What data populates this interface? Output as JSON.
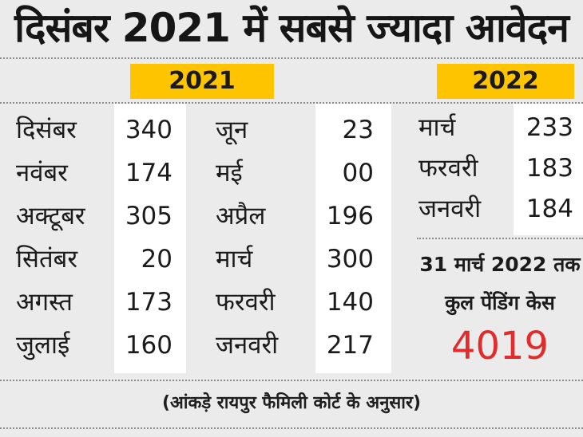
{
  "title": "दिसंबर 2021 में सबसे ज्यादा आवेदन",
  "year_2021": "2021",
  "year_2022": "2022",
  "table_2021_left": [
    {
      "month": "दिसंबर",
      "value": "340"
    },
    {
      "month": "नवंबर",
      "value": "174"
    },
    {
      "month": "अक्टूबर",
      "value": "305"
    },
    {
      "month": "सितंबर",
      "value": "20"
    },
    {
      "month": "अगस्त",
      "value": "173"
    },
    {
      "month": "जुलाई",
      "value": "160"
    }
  ],
  "table_2021_right": [
    {
      "month": "जून",
      "value": "23"
    },
    {
      "month": "मई",
      "value": "00"
    },
    {
      "month": "अप्रैल",
      "value": "196"
    },
    {
      "month": "मार्च",
      "value": "300"
    },
    {
      "month": "फरवरी",
      "value": "140"
    },
    {
      "month": "जनवरी",
      "value": "217"
    }
  ],
  "table_2022": [
    {
      "month": "मार्च",
      "value": "233"
    },
    {
      "month": "फरवरी",
      "value": "183"
    },
    {
      "month": "जनवरी",
      "value": "184"
    }
  ],
  "pending": {
    "line1": "31 मार्च 2022 तक",
    "line2": "कुल पेंडिंग केस",
    "total": "4019"
  },
  "source": "(आंकड़े रायपुर फैमिली कोर्ट के अनुसार)",
  "colors": {
    "highlight": "#ffc400",
    "total": "#e22b2b",
    "background": "#ebebeb"
  }
}
